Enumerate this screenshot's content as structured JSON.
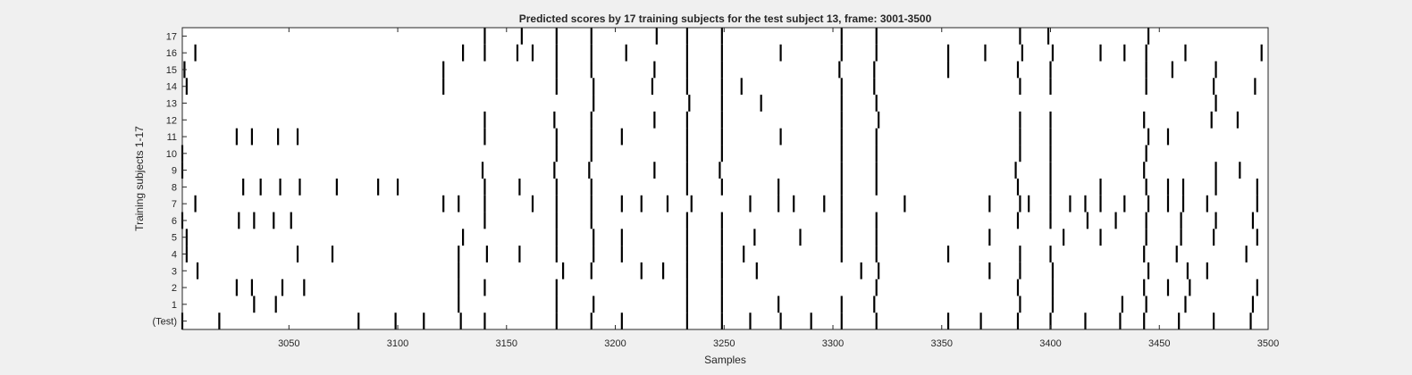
{
  "chart_data": {
    "type": "event-raster",
    "title": "Predicted scores by 17 training subjects for the test subject 13, frame: 3001-3500",
    "xlabel": "Samples",
    "ylabel": "Training subjects 1-17",
    "xlim": [
      3001,
      3500
    ],
    "x_ticks": [
      3050,
      3100,
      3150,
      3200,
      3250,
      3300,
      3350,
      3400,
      3450,
      3500
    ],
    "y_ticks": [
      "(Test)",
      "1",
      "2",
      "3",
      "4",
      "5",
      "6",
      "7",
      "8",
      "9",
      "10",
      "11",
      "12",
      "13",
      "14",
      "15",
      "16",
      "17"
    ],
    "line_color": "#000000",
    "background": "#ffffff",
    "rows": [
      {
        "label": "(Test)",
        "events": [
          3001,
          3018,
          3082,
          3099,
          3112,
          3129,
          3140,
          3173,
          3189,
          3203,
          3233,
          3249,
          3262,
          3276,
          3290,
          3304,
          3320,
          3353,
          3368,
          3385,
          3400,
          3416,
          3432,
          3443,
          3459,
          3475,
          3492
        ]
      },
      {
        "label": "1",
        "events": [
          3034,
          3044,
          3128,
          3173,
          3190,
          3233,
          3249,
          3275,
          3304,
          3319,
          3386,
          3401,
          3433,
          3444,
          3462,
          3493
        ]
      },
      {
        "label": "2",
        "events": [
          3026,
          3033,
          3047,
          3057,
          3128,
          3140,
          3173,
          3233,
          3249,
          3320,
          3385,
          3401,
          3443,
          3454,
          3464,
          3495
        ]
      },
      {
        "label": "3",
        "events": [
          3008,
          3128,
          3176,
          3189,
          3212,
          3222,
          3233,
          3249,
          3265,
          3313,
          3321,
          3372,
          3386,
          3401,
          3445,
          3463,
          3472
        ]
      },
      {
        "label": "4",
        "events": [
          3003,
          3054,
          3070,
          3128,
          3141,
          3156,
          3173,
          3190,
          3203,
          3233,
          3249,
          3259,
          3304,
          3320,
          3353,
          3386,
          3400,
          3443,
          3458,
          3490
        ]
      },
      {
        "label": "5",
        "events": [
          3003,
          3130,
          3173,
          3190,
          3203,
          3233,
          3249,
          3264,
          3285,
          3304,
          3320,
          3372,
          3406,
          3423,
          3444,
          3460,
          3475,
          3495
        ]
      },
      {
        "label": "6",
        "events": [
          3001,
          3027,
          3034,
          3043,
          3051,
          3140,
          3173,
          3189,
          3233,
          3249,
          3304,
          3320,
          3385,
          3400,
          3417,
          3430,
          3444,
          3460,
          3476,
          3493
        ]
      },
      {
        "label": "7",
        "events": [
          3007,
          3121,
          3128,
          3140,
          3162,
          3173,
          3189,
          3203,
          3212,
          3224,
          3235,
          3262,
          3275,
          3282,
          3296,
          3304,
          3333,
          3372,
          3386,
          3390,
          3400,
          3409,
          3416,
          3423,
          3434,
          3445,
          3454,
          3461,
          3472,
          3495
        ]
      },
      {
        "label": "8",
        "events": [
          3029,
          3037,
          3046,
          3055,
          3072,
          3091,
          3100,
          3140,
          3156,
          3173,
          3189,
          3233,
          3249,
          3275,
          3304,
          3320,
          3385,
          3400,
          3423,
          3444,
          3454,
          3461,
          3476,
          3495
        ]
      },
      {
        "label": "9",
        "events": [
          3001,
          3139,
          3172,
          3188,
          3218,
          3233,
          3248,
          3304,
          3320,
          3384,
          3400,
          3443,
          3476,
          3487
        ]
      },
      {
        "label": "10",
        "events": [
          3001,
          3173,
          3189,
          3233,
          3249,
          3304,
          3320,
          3386,
          3400,
          3444
        ]
      },
      {
        "label": "11",
        "events": [
          3026,
          3033,
          3045,
          3054,
          3140,
          3173,
          3189,
          3203,
          3233,
          3249,
          3276,
          3304,
          3320,
          3386,
          3400,
          3445,
          3454
        ]
      },
      {
        "label": "12",
        "events": [
          3140,
          3172,
          3189,
          3218,
          3233,
          3249,
          3304,
          3321,
          3386,
          3400,
          3443,
          3474,
          3486
        ]
      },
      {
        "label": "13",
        "events": [
          3190,
          3234,
          3249,
          3267,
          3304,
          3320,
          3476
        ]
      },
      {
        "label": "14",
        "events": [
          3003,
          3121,
          3173,
          3190,
          3217,
          3233,
          3249,
          3258,
          3304,
          3319,
          3386,
          3400,
          3444,
          3475,
          3494
        ]
      },
      {
        "label": "15",
        "events": [
          3002,
          3121,
          3173,
          3189,
          3218,
          3233,
          3249,
          3303,
          3319,
          3353,
          3385,
          3400,
          3444,
          3456,
          3476
        ]
      },
      {
        "label": "16",
        "events": [
          3007,
          3130,
          3140,
          3155,
          3162,
          3173,
          3189,
          3205,
          3233,
          3249,
          3276,
          3304,
          3320,
          3353,
          3370,
          3387,
          3401,
          3423,
          3434,
          3444,
          3462,
          3497
        ]
      },
      {
        "label": "17",
        "events": [
          3140,
          3157,
          3173,
          3189,
          3219,
          3233,
          3249,
          3304,
          3320,
          3386,
          3399,
          3445
        ]
      }
    ]
  }
}
